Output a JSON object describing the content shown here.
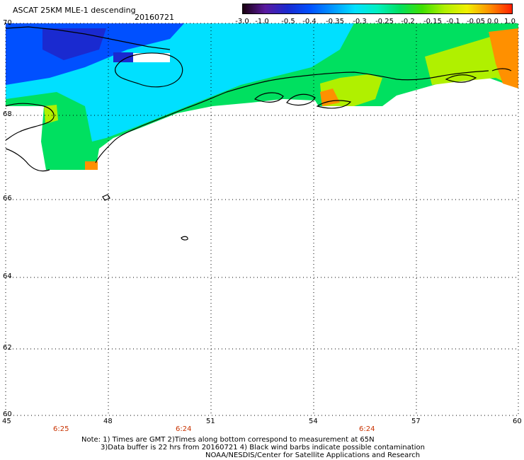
{
  "header": {
    "title": "ASCAT 25KM MLE-1 descending",
    "date": "20160721"
  },
  "colorbar": {
    "labels": [
      "-3.0",
      "-1.0",
      "-0.5",
      "-0.4",
      "-0.35",
      "-0.3",
      "-0.25",
      "-0.2",
      "-0.15",
      "-0.1",
      "-0.05",
      "0.0",
      "1.0"
    ],
    "colors": [
      "#1a0010",
      "#5a1aa0",
      "#1a2ad0",
      "#0050ff",
      "#0096ff",
      "#00e0ff",
      "#00f0c0",
      "#00e060",
      "#40e000",
      "#b0f000",
      "#f0f000",
      "#ff9000",
      "#ff2000"
    ]
  },
  "axes": {
    "lat_labels": [
      "70",
      "68",
      "66",
      "64",
      "62",
      "60"
    ],
    "lon_labels": [
      "45",
      "48",
      "51",
      "54",
      "57",
      "60"
    ]
  },
  "times": [
    "6:25",
    "6:24",
    "6:24"
  ],
  "notes": {
    "line1": "Note: 1) Times are GMT 2)Times along bottom correspond to measurement at 65N",
    "line2": "3)Data buffer is 22 hrs from 20160721 4) Black wind barbs indicate possible contamination",
    "line3": "NOAA/NESDIS/Center for Satellite Applications and Research"
  }
}
